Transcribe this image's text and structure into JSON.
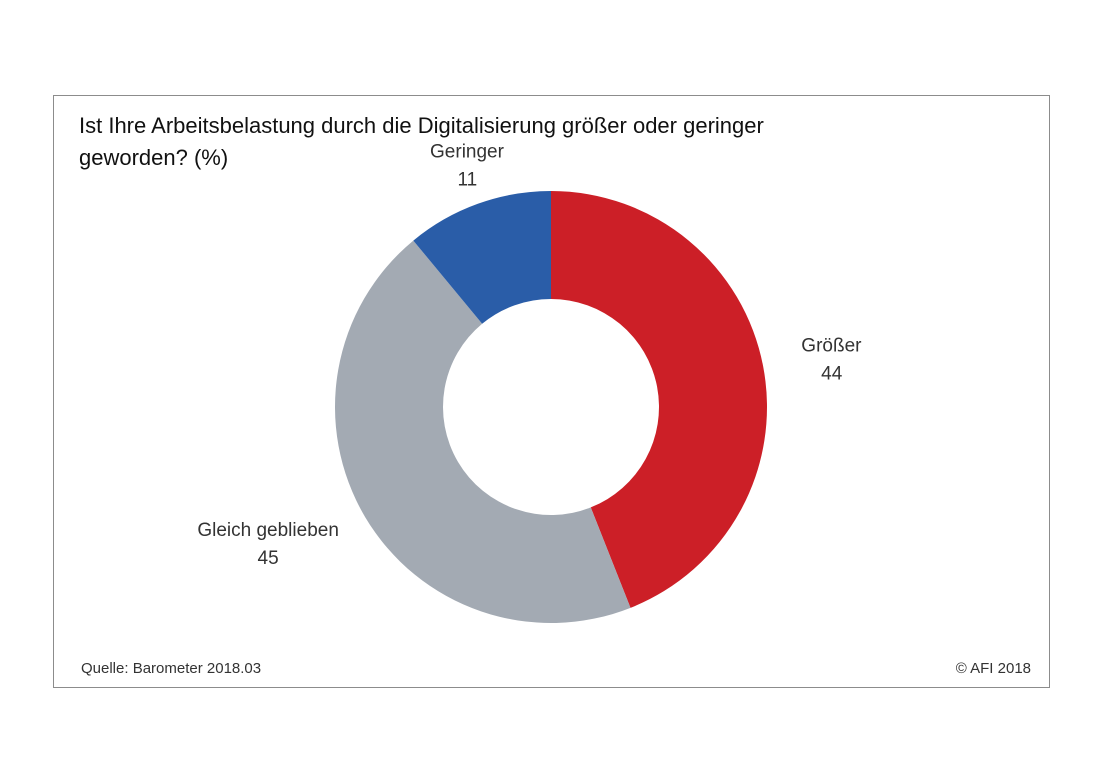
{
  "title": "Ist Ihre Arbeitsbelastung durch die Digitalisierung größer oder geringer geworden? (%)",
  "source": "Quelle: Barometer 2018.03",
  "copyright": "© AFI 2018",
  "chart_data": {
    "type": "pie",
    "title": "Ist Ihre Arbeitsbelastung durch die Digitalisierung größer oder geringer geworden? (%)",
    "donut": true,
    "start": "12 o'clock, clockwise",
    "categories": [
      "Größer",
      "Gleich geblieben",
      "Geringer"
    ],
    "values": [
      44,
      45,
      11
    ],
    "colors": [
      "#cc1f27",
      "#a3aab3",
      "#2a5da8"
    ],
    "data_labels": [
      "44",
      "45",
      "11"
    ]
  }
}
